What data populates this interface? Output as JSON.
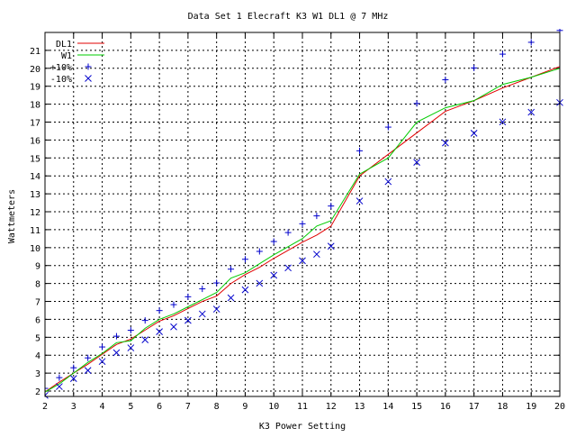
{
  "chart_data": {
    "type": "line",
    "title": "Data Set 1 Elecraft K3 W1 DL1 @ 7 MHz",
    "xlabel": "K3 Power Setting",
    "ylabel": "Wattmeters",
    "xlim": [
      2,
      20
    ],
    "ylim": [
      1.7,
      22
    ],
    "x_ticks": [
      2,
      3,
      4,
      5,
      6,
      7,
      8,
      9,
      10,
      11,
      12,
      13,
      14,
      15,
      16,
      17,
      18,
      19,
      20
    ],
    "y_ticks": [
      2,
      3,
      4,
      5,
      6,
      7,
      8,
      9,
      10,
      11,
      12,
      13,
      14,
      15,
      16,
      17,
      18,
      19,
      20,
      21
    ],
    "grid": true,
    "legend_position": "top-left",
    "colors": {
      "DL1": "#e00000",
      "W1": "#00cc00",
      "+10%": "#0000cc",
      "-10%": "#0000cc"
    },
    "x": [
      2,
      2.5,
      3,
      3.5,
      4,
      4.5,
      5,
      5.5,
      6,
      6.5,
      7,
      7.5,
      8,
      8.5,
      9,
      9.5,
      10,
      10.5,
      11,
      11.5,
      12,
      13,
      14,
      15,
      16,
      17,
      18,
      19,
      20
    ],
    "series": [
      {
        "name": "DL1",
        "style": "line",
        "values": [
          1.95,
          2.5,
          3.0,
          3.5,
          4.05,
          4.6,
          4.9,
          5.4,
          5.9,
          6.2,
          6.6,
          7.0,
          7.3,
          8.0,
          8.5,
          8.9,
          9.4,
          9.85,
          10.3,
          10.7,
          11.2,
          14.0,
          15.2,
          16.4,
          17.6,
          18.2,
          18.9,
          19.5,
          20.1
        ]
      },
      {
        "name": "W1",
        "style": "line",
        "values": [
          1.95,
          2.4,
          3.0,
          3.6,
          4.1,
          4.7,
          4.8,
          5.5,
          6.0,
          6.3,
          6.7,
          7.1,
          7.5,
          8.3,
          8.6,
          9.1,
          9.6,
          10.05,
          10.5,
          11.2,
          11.5,
          14.1,
          15.0,
          17.0,
          17.8,
          18.2,
          19.1,
          19.5,
          20.0
        ]
      },
      {
        "name": "+10%",
        "style": "plus",
        "values": [
          2.15,
          2.75,
          3.3,
          3.85,
          4.46,
          5.06,
          5.39,
          5.94,
          6.49,
          6.82,
          7.26,
          7.7,
          8.03,
          8.8,
          9.35,
          9.79,
          10.34,
          10.84,
          11.33,
          11.77,
          12.32,
          15.4,
          16.72,
          18.04,
          19.36,
          20.02,
          20.79,
          21.45,
          22.11
        ]
      },
      {
        "name": "-10%",
        "style": "cross",
        "values": [
          1.76,
          2.25,
          2.7,
          3.15,
          3.65,
          4.14,
          4.41,
          4.86,
          5.31,
          5.58,
          5.94,
          6.3,
          6.57,
          7.2,
          7.65,
          8.01,
          8.46,
          8.87,
          9.27,
          9.63,
          10.08,
          12.6,
          13.68,
          14.76,
          15.84,
          16.38,
          17.01,
          17.55,
          18.09
        ]
      }
    ]
  }
}
